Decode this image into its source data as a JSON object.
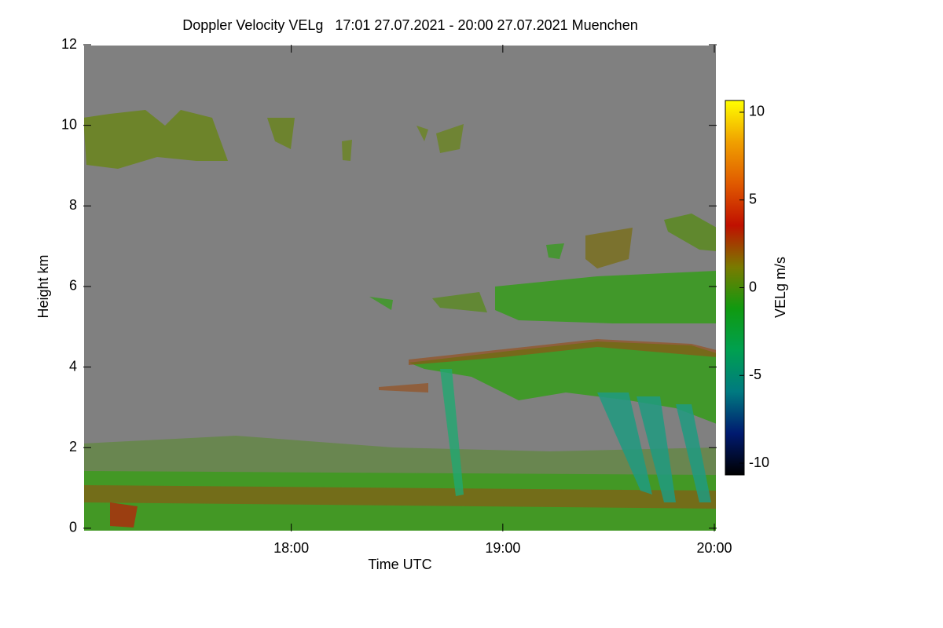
{
  "chart_data": {
    "type": "heatmap",
    "title": "Doppler Velocity VELg   17:01 27.07.2021 - 20:00 27.07.2021 Muenchen",
    "x_label": "Time UTC",
    "y_label": "Height km",
    "xlim": [
      17.0167,
      20.0111
    ],
    "xticks": [
      {
        "value": 18,
        "label": "18:00"
      },
      {
        "value": 19,
        "label": "19:00"
      },
      {
        "value": 20,
        "label": "20:00"
      }
    ],
    "ylim": [
      -0.08,
      12
    ],
    "yticks": [
      0,
      2,
      4,
      6,
      8,
      10,
      12
    ],
    "colorbar": {
      "label": "VELg m/s",
      "zlim": [
        -10.67,
        10.67
      ],
      "ticks": [
        10,
        5,
        0,
        -5,
        -10
      ],
      "colors": [
        "#000000",
        "#001a70",
        "#007a80",
        "#00a050",
        "#109a10",
        "#7a7a00",
        "#c01000",
        "#e05a00",
        "#f0a000",
        "#ffff00"
      ]
    },
    "background": "#808080"
  }
}
